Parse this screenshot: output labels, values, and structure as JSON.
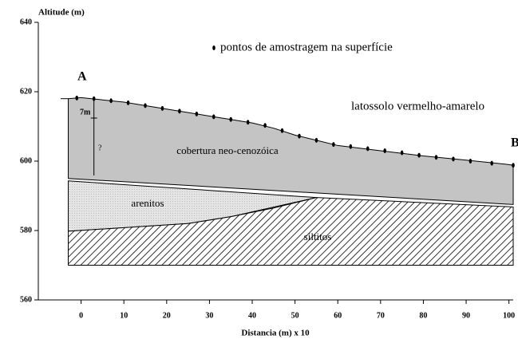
{
  "chart_data": {
    "type": "profile",
    "y_label": "Altitude (m)",
    "x_label": "Distancia (m) x 10",
    "xlim": [
      -10,
      101
    ],
    "xticks": [
      0,
      10,
      20,
      30,
      40,
      50,
      60,
      70,
      80,
      90,
      100
    ],
    "ylim": [
      560,
      640
    ],
    "yticks": [
      560,
      580,
      600,
      620,
      640
    ],
    "layers": [
      {
        "name": "cobertura neo-cenozóica",
        "color": "#c4c4c4",
        "x": [
          -3,
          0,
          10,
          20,
          30,
          40,
          45,
          50,
          55,
          60,
          70,
          80,
          90,
          100,
          101,
          101,
          -3
        ],
        "y": [
          618,
          618.3,
          617,
          615,
          613,
          611,
          609.5,
          607.5,
          606,
          604.5,
          603,
          601.5,
          600.3,
          599,
          598.8,
          587.5,
          595
        ]
      },
      {
        "name": "arenitos",
        "color": "#e2e2e2",
        "x": [
          -3,
          55,
          35,
          25,
          -3
        ],
        "y": [
          594.3,
          589.5,
          584,
          582,
          579.8
        ]
      },
      {
        "name": "siltitos",
        "color": "#555555",
        "x": [
          -3,
          25,
          35,
          45,
          55,
          101,
          101,
          -3
        ],
        "y": [
          579.8,
          582,
          584,
          586.5,
          589.5,
          586.8,
          570,
          570
        ]
      }
    ],
    "series": [
      {
        "name": "pontos de amostragem na superfície",
        "color": "#000000",
        "x": [
          -1,
          3,
          7,
          11,
          15,
          19,
          23,
          27,
          31,
          35,
          39,
          43,
          47,
          51,
          55,
          59,
          63,
          67,
          71,
          75,
          79,
          83,
          87,
          91,
          96,
          101
        ],
        "values": [
          618.2,
          618,
          617.4,
          616.8,
          616,
          615.2,
          614.4,
          613.6,
          612.8,
          612,
          611.2,
          610.3,
          608.8,
          607.2,
          606,
          604.8,
          604.2,
          603.6,
          603,
          602.4,
          601.7,
          601.1,
          600.6,
          600,
          599.4,
          598.8
        ]
      }
    ],
    "annotations": [
      "A",
      "B",
      "latossolo vermelho-amarelo",
      "7m",
      "?"
    ]
  }
}
